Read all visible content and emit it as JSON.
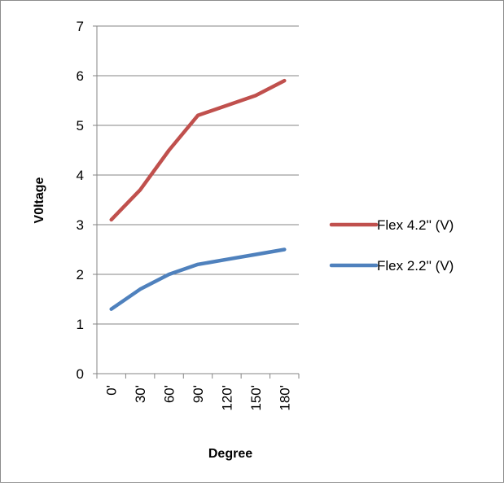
{
  "chart_data": {
    "type": "line",
    "title": "",
    "xlabel": "Degree",
    "ylabel": "V0ltage",
    "categories": [
      "0'",
      "30'",
      "60'",
      "90'",
      "120'",
      "150'",
      "180'"
    ],
    "ylim": [
      0,
      7
    ],
    "yticks": [
      "0",
      "1",
      "2",
      "3",
      "4",
      "5",
      "6",
      "7"
    ],
    "grid": true,
    "legend_position": "right",
    "series": [
      {
        "name": "Flex 4.2'' (V)",
        "color": "#c0504d",
        "values": [
          3.1,
          3.7,
          4.5,
          5.2,
          5.4,
          5.6,
          5.9
        ]
      },
      {
        "name": "Flex 2.2'' (V)",
        "color": "#4f81bd",
        "values": [
          1.3,
          1.7,
          2.0,
          2.2,
          2.3,
          2.4,
          2.5
        ]
      }
    ]
  }
}
